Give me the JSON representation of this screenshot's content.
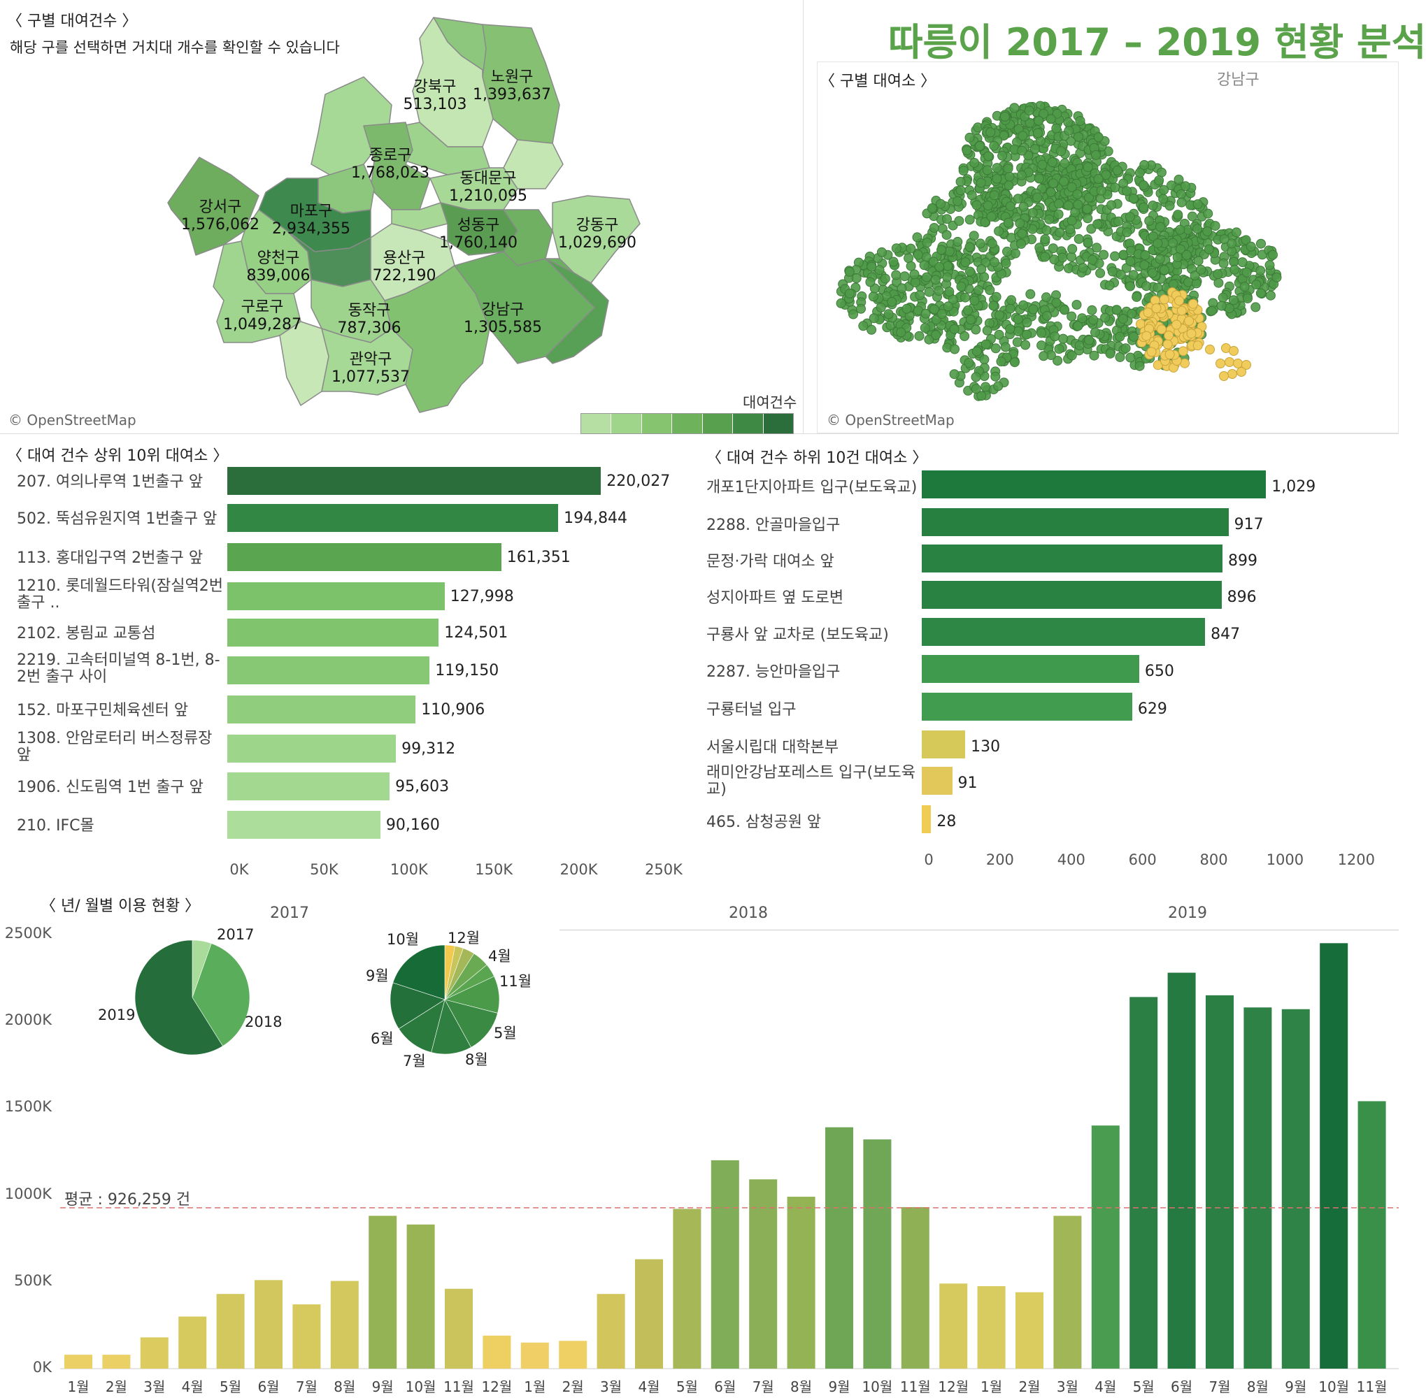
{
  "dashboard_title": "따릉이 2017 – 2019 현황 분석",
  "map_section": {
    "title": "〈 구별 대여건수 〉",
    "subtitle": "해당 구를 선택하면 거치대 개수를 확인할 수 있습니다",
    "attribution": "© OpenStreetMap",
    "legend_title": "대여건수",
    "districts": [
      {
        "name": "강북구",
        "value": "513,103"
      },
      {
        "name": "노원구",
        "value": "1,393,637"
      },
      {
        "name": "종로구",
        "value": "1,768,023"
      },
      {
        "name": "동대문구",
        "value": "1,210,095"
      },
      {
        "name": "강서구",
        "value": "1,576,062"
      },
      {
        "name": "마포구",
        "value": "2,934,355"
      },
      {
        "name": "성동구",
        "value": "1,760,140"
      },
      {
        "name": "강동구",
        "value": "1,029,690"
      },
      {
        "name": "양천구",
        "value": "839,006"
      },
      {
        "name": "용산구",
        "value": "722,190"
      },
      {
        "name": "구로구",
        "value": "1,049,287"
      },
      {
        "name": "동작구",
        "value": "787,306"
      },
      {
        "name": "강남구",
        "value": "1,305,585"
      },
      {
        "name": "관악구",
        "value": "1,077,537"
      }
    ],
    "legend_colors": [
      "#b6e0a3",
      "#9fd58a",
      "#86c470",
      "#6fb25c",
      "#58a04e",
      "#3e8a44",
      "#2b6e3b"
    ]
  },
  "station_map": {
    "title": "〈 구별 대여소 〉",
    "highlight_label": "강남구",
    "attribution": "© OpenStreetMap",
    "dot_color": "#4f9a48",
    "highlight_color": "#f0cc5c"
  },
  "top10": {
    "title": "〈 대여 건수 상위 10위 대여소 〉",
    "items": [
      {
        "label": "207. 여의나루역 1번출구 앞",
        "value": 220027,
        "text": "220,027",
        "color": "#2b6e3b"
      },
      {
        "label": "502. 뚝섬유원지역 1번출구 앞",
        "value": 194844,
        "text": "194,844",
        "color": "#338744"
      },
      {
        "label": "113. 홍대입구역 2번출구 앞",
        "value": 161351,
        "text": "161,351",
        "color": "#5aa650"
      },
      {
        "label": "1210. 롯데월드타워(잠실역2번출구 ..",
        "value": 127998,
        "text": "127,998",
        "color": "#7cc26a"
      },
      {
        "label": "2102. 봉림교 교통섬",
        "value": 124501,
        "text": "124,501",
        "color": "#80c46e"
      },
      {
        "label": "2219. 고속터미널역 8-1번, 8-2번 출구 사이",
        "value": 119150,
        "text": "119,150",
        "color": "#86c873"
      },
      {
        "label": "152. 마포구민체육센터 앞",
        "value": 110906,
        "text": "110,906",
        "color": "#90cd7c"
      },
      {
        "label": "1308. 안암로터리 버스정류장 앞",
        "value": 99312,
        "text": "99,312",
        "color": "#9dd58a"
      },
      {
        "label": "1906. 신도림역 1번 출구 앞",
        "value": 95603,
        "text": "95,603",
        "color": "#a3d890"
      },
      {
        "label": "210. IFC몰",
        "value": 90160,
        "text": "90,160",
        "color": "#acdd9b"
      }
    ],
    "axis_ticks": [
      "0K",
      "50K",
      "100K",
      "150K",
      "200K",
      "250K"
    ],
    "axis_max": 250000
  },
  "bottom10": {
    "title": "〈 대여 건수 하위 10건 대여소 〉",
    "items": [
      {
        "label": "개포1단지아파트 입구(보도육교)",
        "value": 1029,
        "text": "1,029",
        "color": "#1e7a3c"
      },
      {
        "label": "2288. 안골마을입구",
        "value": 917,
        "text": "917",
        "color": "#277f40"
      },
      {
        "label": "문정·가락 대여소 앞",
        "value": 899,
        "text": "899",
        "color": "#2a8242"
      },
      {
        "label": "성지아파트 옆 도로변",
        "value": 896,
        "text": "896",
        "color": "#2a8242"
      },
      {
        "label": "구룡사 앞 교차로 (보도육교)",
        "value": 847,
        "text": "847",
        "color": "#2f8745"
      },
      {
        "label": "2287. 능안마을입구",
        "value": 650,
        "text": "650",
        "color": "#3f9a4e"
      },
      {
        "label": "구룡터널 입구",
        "value": 629,
        "text": "629",
        "color": "#419c50"
      },
      {
        "label": "서울시립대 대학본부",
        "value": 130,
        "text": "130",
        "color": "#d6c95a"
      },
      {
        "label": "래미안강남포레스트 입구(보도육교)",
        "value": 91,
        "text": "91",
        "color": "#e2c85a"
      },
      {
        "label": "465. 삼청공원 앞",
        "value": 28,
        "text": "28",
        "color": "#f0cc55"
      }
    ],
    "axis_ticks": [
      "0",
      "200",
      "400",
      "600",
      "800",
      "1000",
      "1200"
    ],
    "axis_max": 1200
  },
  "monthly": {
    "title": "〈 년/ 월별 이용 현황 〉",
    "avg_label": "평균 : 926,259 건",
    "avg_value": 926259,
    "years": [
      "2017",
      "2018",
      "2019"
    ],
    "y_ticks": [
      "0K",
      "500K",
      "1000K",
      "1500K",
      "2000K",
      "2500K"
    ],
    "y_max": 2500000,
    "pie_years": [
      {
        "label": "2017",
        "value": 5.4,
        "color": "#a9dc9a"
      },
      {
        "label": "2018",
        "value": 35.7,
        "color": "#5aad5a"
      },
      {
        "label": "2019",
        "value": 58.9,
        "color": "#256e3c"
      }
    ],
    "pie_months": [
      {
        "label": "12월",
        "value": 3,
        "color": "#f2c94c"
      },
      {
        "label": "",
        "value": 2.5,
        "color": "#c8c55a"
      },
      {
        "label": "4월",
        "value": 3.5,
        "color": "#a4b85a"
      },
      {
        "label": "11월",
        "value": 5,
        "color": "#6aaa52"
      },
      {
        "label": "",
        "value": 4,
        "color": "#59a550"
      },
      {
        "label": "5월",
        "value": 11,
        "color": "#4a9a4a"
      },
      {
        "label": "8월",
        "value": 13,
        "color": "#3a8a44"
      },
      {
        "label": "7월",
        "value": 12,
        "color": "#2f7f40"
      },
      {
        "label": "6월",
        "value": 12,
        "color": "#2a7a3e"
      },
      {
        "label": "9월",
        "value": 14,
        "color": "#23703a"
      },
      {
        "label": "10월",
        "value": 20,
        "color": "#176b36"
      }
    ],
    "chart_data": {
      "type": "bar",
      "x_label": "",
      "y_label": "",
      "categories": [
        "1월",
        "2월",
        "3월",
        "4월",
        "5월",
        "6월",
        "7월",
        "8월",
        "9월",
        "10월",
        "11월",
        "12월",
        "1월",
        "2월",
        "3월",
        "4월",
        "5월",
        "6월",
        "7월",
        "8월",
        "9월",
        "10월",
        "11월",
        "12월",
        "1월",
        "2월",
        "3월",
        "4월",
        "5월",
        "6월",
        "7월",
        "8월",
        "9월",
        "10월",
        "11월"
      ],
      "values": [
        80000,
        80000,
        180000,
        300000,
        430000,
        510000,
        370000,
        505000,
        880000,
        830000,
        460000,
        190000,
        150000,
        160000,
        430000,
        630000,
        920000,
        1200000,
        1090000,
        990000,
        1390000,
        1320000,
        930000,
        490000,
        475000,
        440000,
        880000,
        1400000,
        2140000,
        2280000,
        2150000,
        2080000,
        2070000,
        2450000,
        1540000
      ],
      "colors": [
        "#ebd065",
        "#ebd065",
        "#dccc5f",
        "#d6ca5e",
        "#d3c85e",
        "#d2c75e",
        "#d6ca5e",
        "#d3c85e",
        "#93b354",
        "#98b455",
        "#cbc45c",
        "#eecf61",
        "#f0d066",
        "#efd064",
        "#d1c55c",
        "#c2bf5a",
        "#a6b758",
        "#80ad58",
        "#8aaf56",
        "#93b355",
        "#6ea655",
        "#6fa757",
        "#8fb054",
        "#d6ca5e",
        "#d8cb5f",
        "#dbcc60",
        "#a0b657",
        "#4a9c50",
        "#2b7e44",
        "#247a41",
        "#2b7e44",
        "#2e8246",
        "#2f8346",
        "#166d3a",
        "#3a9049"
      ],
      "ylim": [
        0,
        2500000
      ]
    }
  }
}
